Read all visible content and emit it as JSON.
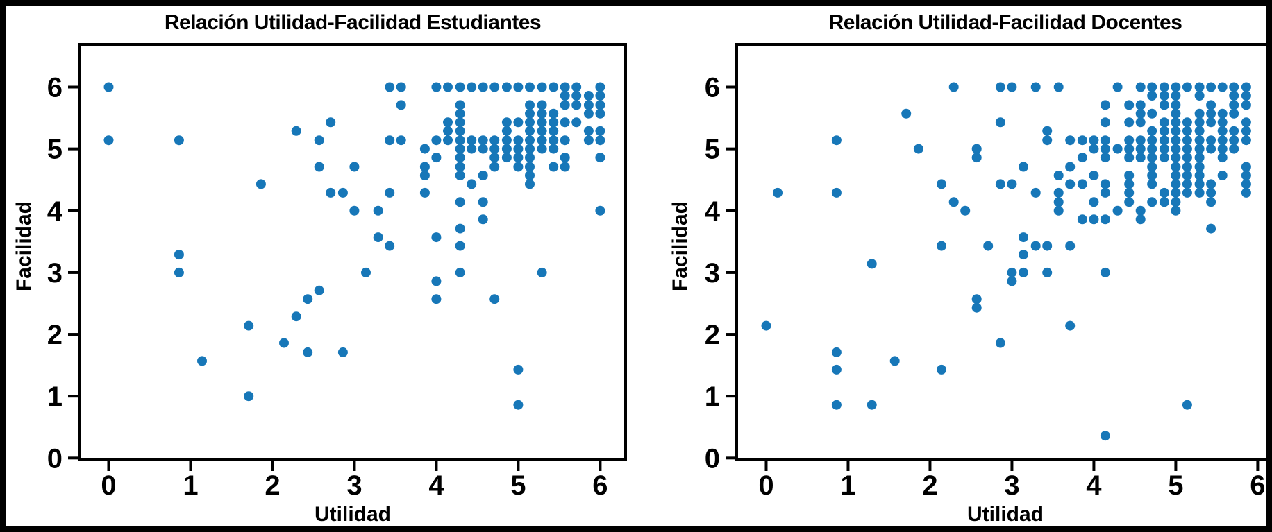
{
  "page": {
    "background": "#ffffff",
    "frame_color": "#000000",
    "text_color": "#000000"
  },
  "chart_data": [
    {
      "type": "scatter",
      "title": "Relación Utilidad-Facilidad Estudiantes",
      "xlabel": "Utilidad",
      "ylabel": "Facilidad",
      "xticks": [
        0,
        1,
        2,
        3,
        4,
        5,
        6
      ],
      "yticks": [
        0,
        1,
        2,
        3,
        4,
        5,
        6
      ],
      "xlim": [
        -0.36,
        6.31
      ],
      "ylim": [
        -0.03,
        6.69
      ],
      "grid": false,
      "legend": false,
      "marker_color": "#1777b8",
      "points": [
        [
          0,
          6
        ],
        [
          0,
          5.14
        ],
        [
          0.86,
          5.14
        ],
        [
          0.86,
          3.29
        ],
        [
          0.86,
          3
        ],
        [
          1.14,
          1.57
        ],
        [
          1.71,
          1
        ],
        [
          1.71,
          2.14
        ],
        [
          2.14,
          1.86
        ],
        [
          2.29,
          2.29
        ],
        [
          2.43,
          1.71
        ],
        [
          2.86,
          1.71
        ],
        [
          2.43,
          2.57
        ],
        [
          2.57,
          2.71
        ],
        [
          1.86,
          4.43
        ],
        [
          2.29,
          5.29
        ],
        [
          2.57,
          5.14
        ],
        [
          2.71,
          5.43
        ],
        [
          3.43,
          6
        ],
        [
          3.57,
          6
        ],
        [
          3.57,
          5.71
        ],
        [
          3.43,
          5.14
        ],
        [
          3.57,
          5.14
        ],
        [
          2.57,
          4.71
        ],
        [
          3,
          4.71
        ],
        [
          3.86,
          5
        ],
        [
          3.86,
          4.71
        ],
        [
          3.86,
          4.57
        ],
        [
          2.71,
          4.29
        ],
        [
          2.86,
          4.29
        ],
        [
          3.43,
          4.29
        ],
        [
          3.86,
          4.29
        ],
        [
          3,
          4
        ],
        [
          3.29,
          4
        ],
        [
          3.29,
          3.57
        ],
        [
          3.43,
          3.43
        ],
        [
          3.14,
          3
        ],
        [
          4.29,
          4.14
        ],
        [
          4.57,
          4.14
        ],
        [
          6,
          4
        ],
        [
          4.57,
          3.86
        ],
        [
          4.29,
          3.71
        ],
        [
          4,
          3.57
        ],
        [
          4.29,
          3.43
        ],
        [
          4.29,
          3
        ],
        [
          5.29,
          3
        ],
        [
          4,
          2.86
        ],
        [
          4,
          2.57
        ],
        [
          4.71,
          2.57
        ],
        [
          5,
          1.43
        ],
        [
          5,
          0.86
        ],
        [
          4,
          6
        ],
        [
          4.14,
          6
        ],
        [
          4.29,
          6
        ],
        [
          4.43,
          6
        ],
        [
          4.57,
          6
        ],
        [
          4.71,
          6
        ],
        [
          4.86,
          6
        ],
        [
          5,
          6
        ],
        [
          5.14,
          6
        ],
        [
          5.29,
          6
        ],
        [
          5.43,
          6
        ],
        [
          5.57,
          6
        ],
        [
          5.71,
          6
        ],
        [
          6,
          6
        ],
        [
          5.57,
          5.86
        ],
        [
          5.71,
          5.86
        ],
        [
          5.86,
          5.86
        ],
        [
          6,
          5.86
        ],
        [
          4.29,
          5.71
        ],
        [
          5.14,
          5.71
        ],
        [
          5.29,
          5.71
        ],
        [
          5.57,
          5.71
        ],
        [
          5.71,
          5.71
        ],
        [
          5.86,
          5.71
        ],
        [
          6,
          5.71
        ],
        [
          4.29,
          5.57
        ],
        [
          5.14,
          5.57
        ],
        [
          5.29,
          5.57
        ],
        [
          5.43,
          5.57
        ],
        [
          5.86,
          5.57
        ],
        [
          6,
          5.57
        ],
        [
          4.14,
          5.43
        ],
        [
          4.29,
          5.43
        ],
        [
          4.86,
          5.43
        ],
        [
          5,
          5.43
        ],
        [
          5.14,
          5.43
        ],
        [
          5.29,
          5.43
        ],
        [
          5.43,
          5.43
        ],
        [
          5.57,
          5.43
        ],
        [
          5.71,
          5.43
        ],
        [
          4.14,
          5.29
        ],
        [
          4.29,
          5.29
        ],
        [
          4.86,
          5.29
        ],
        [
          5.14,
          5.29
        ],
        [
          5.29,
          5.29
        ],
        [
          5.43,
          5.29
        ],
        [
          5.86,
          5.29
        ],
        [
          6,
          5.29
        ],
        [
          4,
          5.14
        ],
        [
          4.14,
          5.14
        ],
        [
          4.29,
          5.14
        ],
        [
          4.43,
          5.14
        ],
        [
          4.57,
          5.14
        ],
        [
          4.71,
          5.14
        ],
        [
          4.86,
          5.14
        ],
        [
          5,
          5.14
        ],
        [
          5.14,
          5.14
        ],
        [
          5.29,
          5.14
        ],
        [
          5.43,
          5.14
        ],
        [
          5.57,
          5.14
        ],
        [
          5.86,
          5.14
        ],
        [
          6,
          5.14
        ],
        [
          4.29,
          5
        ],
        [
          4.43,
          5
        ],
        [
          4.57,
          5
        ],
        [
          4.71,
          5
        ],
        [
          4.86,
          5
        ],
        [
          5,
          5
        ],
        [
          5.14,
          5
        ],
        [
          5.29,
          5
        ],
        [
          5.43,
          5
        ],
        [
          4,
          4.86
        ],
        [
          4.29,
          4.86
        ],
        [
          4.71,
          4.86
        ],
        [
          4.86,
          4.86
        ],
        [
          5,
          4.86
        ],
        [
          5.14,
          4.86
        ],
        [
          5.57,
          4.86
        ],
        [
          6,
          4.86
        ],
        [
          4.29,
          4.71
        ],
        [
          4.71,
          4.71
        ],
        [
          5,
          4.71
        ],
        [
          5.14,
          4.71
        ],
        [
          5.43,
          4.71
        ],
        [
          5.57,
          4.71
        ],
        [
          4.29,
          4.57
        ],
        [
          4.57,
          4.57
        ],
        [
          5.14,
          4.57
        ],
        [
          4.43,
          4.43
        ],
        [
          5.14,
          4.43
        ]
      ]
    },
    {
      "type": "scatter",
      "title": "Relación Utilidad-Facilidad Docentes",
      "xlabel": "Utilidad",
      "ylabel": "Facilidad",
      "xticks": [
        0,
        1,
        2,
        3,
        4,
        5,
        6
      ],
      "yticks": [
        0,
        1,
        2,
        3,
        4,
        5,
        6
      ],
      "xlim": [
        -0.36,
        6.2
      ],
      "ylim": [
        -0.03,
        6.69
      ],
      "grid": false,
      "legend": false,
      "marker_color": "#1777b8",
      "points": [
        [
          0.14,
          4.29
        ],
        [
          0.86,
          5.14
        ],
        [
          0.86,
          4.29
        ],
        [
          0,
          2.14
        ],
        [
          0.86,
          1.71
        ],
        [
          0.86,
          1.43
        ],
        [
          1.57,
          1.57
        ],
        [
          2.14,
          1.43
        ],
        [
          0.86,
          0.86
        ],
        [
          1.29,
          0.86
        ],
        [
          1.29,
          3.14
        ],
        [
          2.86,
          1.86
        ],
        [
          3.71,
          2.14
        ],
        [
          4.14,
          0.36
        ],
        [
          5.14,
          0.86
        ],
        [
          2.29,
          6
        ],
        [
          2.86,
          6
        ],
        [
          3,
          6
        ],
        [
          3.29,
          6
        ],
        [
          1.71,
          5.57
        ],
        [
          2.86,
          5.43
        ],
        [
          3.43,
          5.29
        ],
        [
          3.43,
          5.14
        ],
        [
          1.86,
          5
        ],
        [
          2.57,
          5
        ],
        [
          2.57,
          4.86
        ],
        [
          3.14,
          4.71
        ],
        [
          2.14,
          4.43
        ],
        [
          2.86,
          4.43
        ],
        [
          3,
          4.43
        ],
        [
          3.29,
          4.29
        ],
        [
          2.29,
          4.14
        ],
        [
          2.43,
          4
        ],
        [
          2.14,
          3.43
        ],
        [
          2.71,
          3.43
        ],
        [
          3.14,
          3.57
        ],
        [
          3.29,
          3.43
        ],
        [
          3.43,
          3.43
        ],
        [
          3.14,
          3.29
        ],
        [
          3,
          3
        ],
        [
          3.14,
          3
        ],
        [
          3.43,
          3
        ],
        [
          3,
          2.86
        ],
        [
          2.57,
          2.57
        ],
        [
          2.57,
          2.43
        ],
        [
          3.57,
          4.29
        ],
        [
          4.14,
          4.29
        ],
        [
          4.43,
          4.29
        ],
        [
          4.86,
          4.29
        ],
        [
          5,
          4.29
        ],
        [
          5.14,
          4.29
        ],
        [
          5.29,
          4.29
        ],
        [
          5.43,
          4.29
        ],
        [
          5.86,
          4.29
        ],
        [
          3.57,
          4.14
        ],
        [
          4,
          4.14
        ],
        [
          4.43,
          4.14
        ],
        [
          4.71,
          4.14
        ],
        [
          4.86,
          4.14
        ],
        [
          5,
          4.14
        ],
        [
          5.43,
          4.14
        ],
        [
          3.57,
          4
        ],
        [
          4.29,
          4
        ],
        [
          4.57,
          4
        ],
        [
          5,
          4
        ],
        [
          3.86,
          3.86
        ],
        [
          4,
          3.86
        ],
        [
          4.14,
          3.86
        ],
        [
          4.57,
          3.86
        ],
        [
          5.43,
          3.71
        ],
        [
          3.71,
          3.43
        ],
        [
          4.14,
          3
        ],
        [
          3.57,
          6
        ],
        [
          4.29,
          6
        ],
        [
          4.57,
          6
        ],
        [
          4.71,
          6
        ],
        [
          4.86,
          6
        ],
        [
          5,
          6
        ],
        [
          5.14,
          6
        ],
        [
          5.29,
          6
        ],
        [
          5.43,
          6
        ],
        [
          5.57,
          6
        ],
        [
          5.71,
          6
        ],
        [
          5.86,
          6
        ],
        [
          4.71,
          5.86
        ],
        [
          4.86,
          5.86
        ],
        [
          5,
          5.86
        ],
        [
          5.29,
          5.86
        ],
        [
          5.71,
          5.86
        ],
        [
          5.86,
          5.86
        ],
        [
          4.14,
          5.71
        ],
        [
          4.43,
          5.71
        ],
        [
          4.57,
          5.71
        ],
        [
          4.86,
          5.71
        ],
        [
          5,
          5.71
        ],
        [
          5.43,
          5.71
        ],
        [
          5.71,
          5.71
        ],
        [
          5.86,
          5.71
        ],
        [
          4.57,
          5.57
        ],
        [
          4.71,
          5.57
        ],
        [
          5,
          5.57
        ],
        [
          5.29,
          5.57
        ],
        [
          5.43,
          5.57
        ],
        [
          5.57,
          5.57
        ],
        [
          5.71,
          5.57
        ],
        [
          4.14,
          5.43
        ],
        [
          4.43,
          5.43
        ],
        [
          4.57,
          5.43
        ],
        [
          4.86,
          5.43
        ],
        [
          5,
          5.43
        ],
        [
          5.14,
          5.43
        ],
        [
          5.29,
          5.43
        ],
        [
          5.43,
          5.43
        ],
        [
          5.57,
          5.43
        ],
        [
          5.86,
          5.43
        ],
        [
          4.71,
          5.29
        ],
        [
          4.86,
          5.29
        ],
        [
          5,
          5.29
        ],
        [
          5.14,
          5.29
        ],
        [
          5.29,
          5.29
        ],
        [
          5.57,
          5.29
        ],
        [
          5.71,
          5.29
        ],
        [
          5.86,
          5.29
        ],
        [
          3.71,
          5.14
        ],
        [
          3.86,
          5.14
        ],
        [
          4,
          5.14
        ],
        [
          4.14,
          5.14
        ],
        [
          4.43,
          5.14
        ],
        [
          4.57,
          5.14
        ],
        [
          4.71,
          5.14
        ],
        [
          4.86,
          5.14
        ],
        [
          5,
          5.14
        ],
        [
          5.14,
          5.14
        ],
        [
          5.29,
          5.14
        ],
        [
          5.43,
          5.14
        ],
        [
          5.57,
          5.14
        ],
        [
          5.71,
          5.14
        ],
        [
          5.86,
          5.14
        ],
        [
          4,
          5
        ],
        [
          4.14,
          5
        ],
        [
          4.29,
          5
        ],
        [
          4.43,
          5
        ],
        [
          4.57,
          5
        ],
        [
          4.71,
          5
        ],
        [
          4.86,
          5
        ],
        [
          5,
          5
        ],
        [
          5.14,
          5
        ],
        [
          5.29,
          5
        ],
        [
          5.43,
          5
        ],
        [
          5.57,
          5
        ],
        [
          5.71,
          5
        ],
        [
          3.86,
          4.86
        ],
        [
          4.14,
          4.86
        ],
        [
          4.43,
          4.86
        ],
        [
          4.57,
          4.86
        ],
        [
          4.71,
          4.86
        ],
        [
          4.86,
          4.86
        ],
        [
          5,
          4.86
        ],
        [
          5.14,
          4.86
        ],
        [
          5.29,
          4.86
        ],
        [
          5.57,
          4.86
        ],
        [
          3.71,
          4.71
        ],
        [
          4.71,
          4.71
        ],
        [
          5,
          4.71
        ],
        [
          5.14,
          4.71
        ],
        [
          5.29,
          4.71
        ],
        [
          5.86,
          4.71
        ],
        [
          3.57,
          4.57
        ],
        [
          4,
          4.57
        ],
        [
          4.43,
          4.57
        ],
        [
          4.71,
          4.57
        ],
        [
          5,
          4.57
        ],
        [
          5.14,
          4.57
        ],
        [
          5.29,
          4.57
        ],
        [
          5.57,
          4.57
        ],
        [
          5.86,
          4.57
        ],
        [
          3.71,
          4.43
        ],
        [
          3.86,
          4.43
        ],
        [
          4.14,
          4.43
        ],
        [
          4.43,
          4.43
        ],
        [
          4.71,
          4.43
        ],
        [
          5,
          4.43
        ],
        [
          5.14,
          4.43
        ],
        [
          5.29,
          4.43
        ],
        [
          5.43,
          4.43
        ],
        [
          5.86,
          4.43
        ]
      ]
    }
  ]
}
